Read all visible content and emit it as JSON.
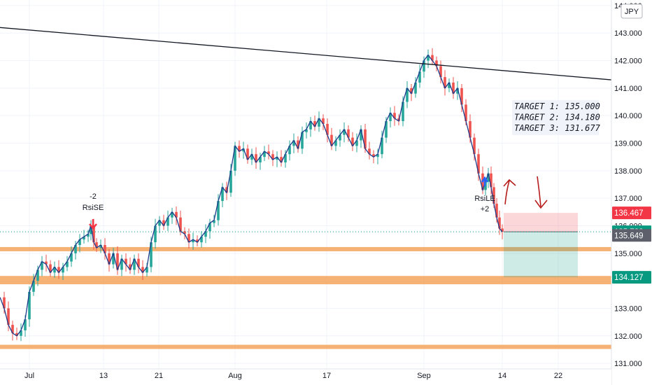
{
  "currency_badge": "JPY",
  "chart_data": {
    "type": "candlestick",
    "symbol_currency": "JPY",
    "y_range": [
      130.8,
      144.2
    ],
    "y_ticks": [
      "131.000",
      "132.000",
      "133.000",
      "134.000",
      "135.000",
      "136.000",
      "137.000",
      "138.000",
      "139.000",
      "140.000",
      "141.000",
      "142.000",
      "143.000",
      "144.000"
    ],
    "y_tick_values": [
      131,
      132,
      133,
      134,
      135,
      136,
      137,
      138,
      139,
      140,
      141,
      142,
      143,
      144
    ],
    "x_ticks": [
      "Jul",
      "13",
      "21",
      "Aug",
      "17",
      "Sep",
      "14",
      "22"
    ],
    "price_series": [
      [
        0,
        133.4
      ],
      [
        6,
        133.0
      ],
      [
        12,
        132.4
      ],
      [
        18,
        132.1
      ],
      [
        24,
        132.0
      ],
      [
        30,
        132.2
      ],
      [
        36,
        132.6
      ],
      [
        42,
        133.6
      ],
      [
        48,
        134.0
      ],
      [
        54,
        134.4
      ],
      [
        60,
        134.7
      ],
      [
        66,
        134.6
      ],
      [
        72,
        134.3
      ],
      [
        78,
        134.5
      ],
      [
        84,
        134.3
      ],
      [
        90,
        134.5
      ],
      [
        96,
        134.7
      ],
      [
        102,
        135.0
      ],
      [
        108,
        135.3
      ],
      [
        114,
        135.5
      ],
      [
        120,
        135.6
      ],
      [
        126,
        135.7
      ],
      [
        130,
        136.0
      ],
      [
        134,
        135.4
      ],
      [
        138,
        135.2
      ],
      [
        144,
        135.3
      ],
      [
        150,
        135.0
      ],
      [
        156,
        134.6
      ],
      [
        162,
        135.0
      ],
      [
        168,
        134.4
      ],
      [
        174,
        134.8
      ],
      [
        180,
        134.6
      ],
      [
        186,
        134.4
      ],
      [
        192,
        134.8
      ],
      [
        198,
        134.5
      ],
      [
        204,
        134.3
      ],
      [
        210,
        134.5
      ],
      [
        216,
        135.4
      ],
      [
        222,
        136.0
      ],
      [
        228,
        136.2
      ],
      [
        234,
        136.0
      ],
      [
        240,
        136.3
      ],
      [
        246,
        136.5
      ],
      [
        252,
        136.3
      ],
      [
        258,
        135.8
      ],
      [
        264,
        135.7
      ],
      [
        270,
        135.4
      ],
      [
        276,
        135.5
      ],
      [
        282,
        135.4
      ],
      [
        288,
        135.6
      ],
      [
        294,
        135.8
      ],
      [
        300,
        136.1
      ],
      [
        306,
        136.2
      ],
      [
        312,
        136.9
      ],
      [
        318,
        137.4
      ],
      [
        324,
        137.2
      ],
      [
        330,
        138.0
      ],
      [
        336,
        138.9
      ],
      [
        342,
        138.7
      ],
      [
        348,
        138.8
      ],
      [
        354,
        138.4
      ],
      [
        360,
        138.6
      ],
      [
        366,
        138.3
      ],
      [
        372,
        138.5
      ],
      [
        378,
        138.7
      ],
      [
        384,
        138.6
      ],
      [
        390,
        138.4
      ],
      [
        396,
        138.5
      ],
      [
        402,
        138.3
      ],
      [
        408,
        138.6
      ],
      [
        414,
        138.9
      ],
      [
        420,
        139.1
      ],
      [
        426,
        138.8
      ],
      [
        432,
        139.4
      ],
      [
        438,
        139.5
      ],
      [
        444,
        139.8
      ],
      [
        450,
        139.6
      ],
      [
        456,
        139.9
      ],
      [
        462,
        139.7
      ],
      [
        468,
        139.3
      ],
      [
        474,
        138.9
      ],
      [
        480,
        139.1
      ],
      [
        486,
        139.3
      ],
      [
        492,
        139.5
      ],
      [
        498,
        139.2
      ],
      [
        504,
        138.9
      ],
      [
        510,
        139.1
      ],
      [
        516,
        139.5
      ],
      [
        522,
        138.8
      ],
      [
        528,
        138.6
      ],
      [
        534,
        138.5
      ],
      [
        540,
        138.6
      ],
      [
        546,
        139.2
      ],
      [
        552,
        139.8
      ],
      [
        558,
        140.1
      ],
      [
        564,
        139.9
      ],
      [
        570,
        139.8
      ],
      [
        576,
        140.5
      ],
      [
        582,
        141.0
      ],
      [
        588,
        140.8
      ],
      [
        594,
        141.2
      ],
      [
        600,
        141.6
      ],
      [
        606,
        142.0
      ],
      [
        612,
        142.2
      ],
      [
        618,
        142.0
      ],
      [
        624,
        141.8
      ],
      [
        630,
        141.4
      ],
      [
        636,
        141.0
      ],
      [
        642,
        141.2
      ],
      [
        648,
        140.8
      ],
      [
        654,
        141.0
      ],
      [
        660,
        140.4
      ],
      [
        666,
        139.8
      ],
      [
        672,
        139.2
      ],
      [
        678,
        138.6
      ],
      [
        684,
        137.9
      ],
      [
        690,
        137.3
      ],
      [
        694,
        137.6
      ],
      [
        698,
        137.9
      ],
      [
        702,
        137.4
      ],
      [
        706,
        136.8
      ],
      [
        710,
        136.3
      ],
      [
        714,
        135.9
      ],
      [
        718,
        135.78
      ]
    ],
    "annotations": {
      "target_lines": [
        "TARGET 1: 135.000",
        "TARGET 2: 134.180",
        "TARGET 3: 131.677"
      ],
      "signals": [
        {
          "label": "RsiSE",
          "count": "-2",
          "price": 136.0
        },
        {
          "label": "RsiLE",
          "count": "+2",
          "price": 137.4
        }
      ],
      "trendline": {
        "from_price": 143.2,
        "to_price": 141.3
      },
      "support_zones": [
        135.15,
        134.1,
        133.95,
        131.6
      ],
      "position": {
        "entry": 135.78,
        "stop": 136.467,
        "target": 134.127
      },
      "price_labels": [
        {
          "value": "136.467",
          "color": "#f23645"
        },
        {
          "value": "135.782",
          "color": "#089981"
        },
        {
          "value": "135.649",
          "color": "#5d606b"
        },
        {
          "value": "134.127",
          "color": "#089981"
        }
      ]
    },
    "colors": {
      "up": "#26a69a",
      "down": "#ef5350",
      "zone": "#f5a35c",
      "trendline": "#131722"
    }
  }
}
